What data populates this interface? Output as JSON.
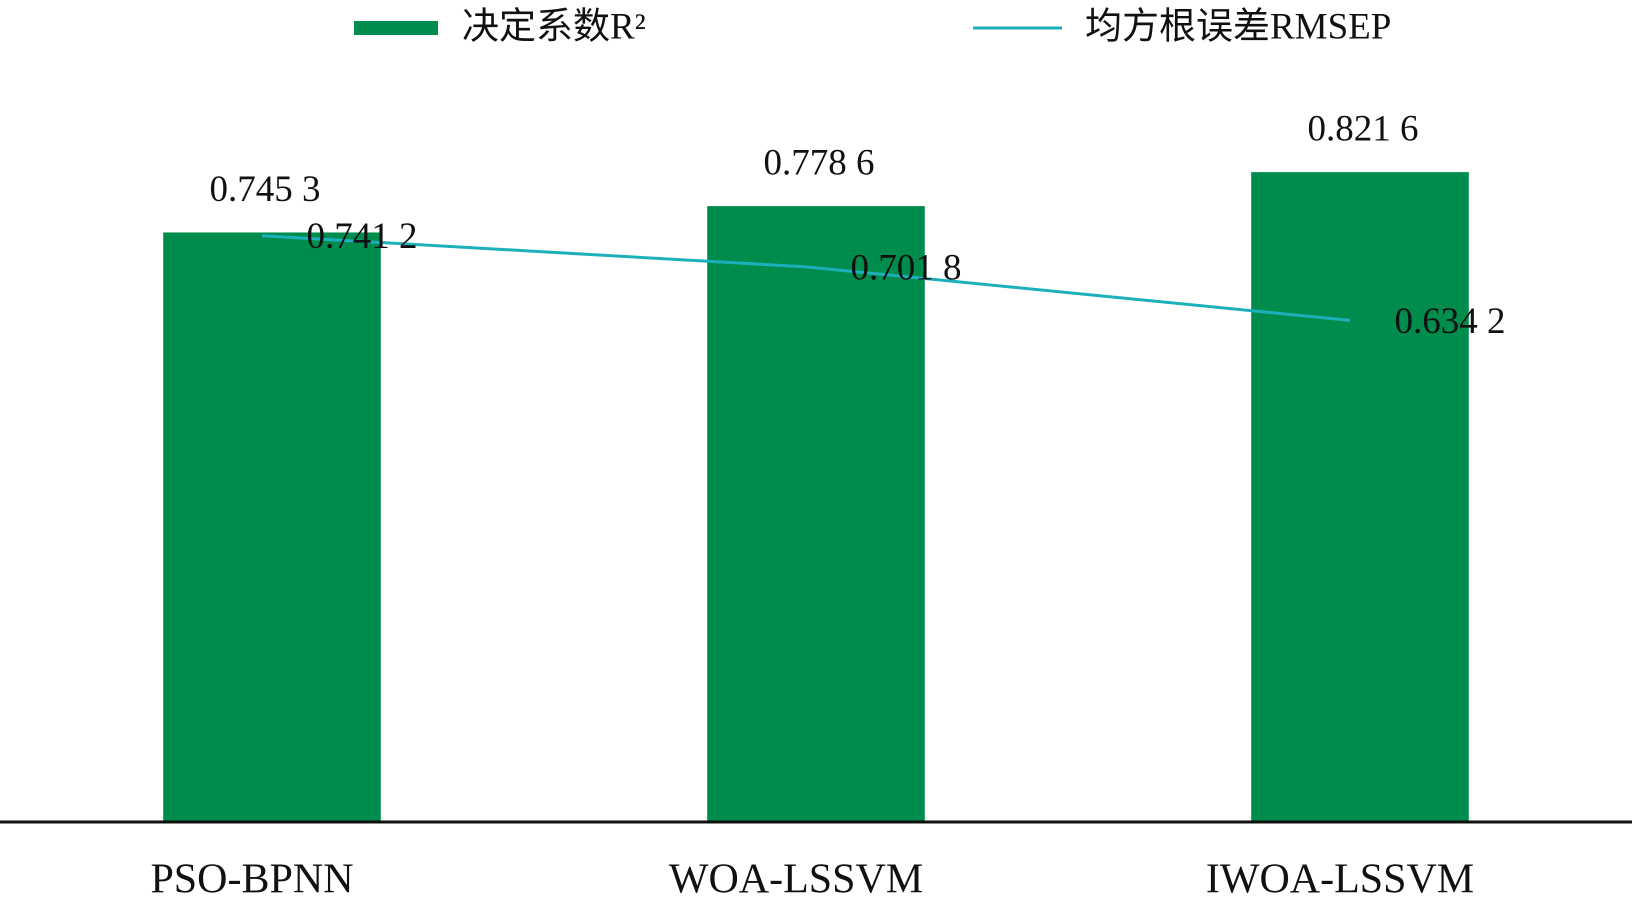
{
  "chart_data": {
    "type": "bar-line",
    "categories": [
      "PSO-BPNN",
      "WOA-LSSVM",
      "IWOA-LSSVM"
    ],
    "series": [
      {
        "name": "决定系数R²",
        "type": "bar",
        "color": "#008c4d",
        "values": [
          0.7453,
          0.7786,
          0.8216
        ],
        "value_labels": [
          "0.745 3",
          "0.778 6",
          "0.821 6"
        ]
      },
      {
        "name": "均方根误差RMSEP",
        "type": "line",
        "color": "#1bb0bb",
        "values": [
          0.7412,
          0.7018,
          0.6342
        ],
        "value_labels": [
          "0.741 2",
          "0.701 8",
          "0.634 2"
        ]
      }
    ],
    "ylim": [
      0,
      1
    ]
  }
}
